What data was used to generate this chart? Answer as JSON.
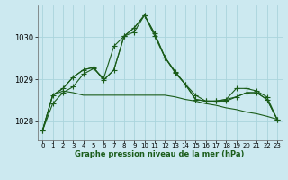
{
  "title": "Graphe pression niveau de la mer (hPa)",
  "background_color": "#cce9f0",
  "line_color": "#1a5c1a",
  "grid_color": "#aad4dc",
  "xlim": [
    -0.5,
    23.5
  ],
  "ylim": [
    1027.55,
    1030.75
  ],
  "yticks": [
    1028,
    1029,
    1030
  ],
  "xticks": [
    0,
    1,
    2,
    3,
    4,
    5,
    6,
    7,
    8,
    9,
    10,
    11,
    12,
    13,
    14,
    15,
    16,
    17,
    18,
    19,
    20,
    21,
    22,
    23
  ],
  "series": [
    [
      1027.78,
      1028.42,
      1028.68,
      1028.82,
      1029.12,
      1029.25,
      1029.02,
      1029.78,
      1030.02,
      1030.12,
      1030.52,
      1030.02,
      1029.52,
      1029.15,
      1028.88,
      1028.62,
      1028.48,
      1028.48,
      1028.48,
      1028.58,
      1028.68,
      1028.68,
      1028.52,
      1028.05
    ],
    [
      1027.78,
      1028.62,
      1028.78,
      1029.05,
      1029.22,
      1029.28,
      1028.98,
      1029.22,
      1030.02,
      1030.22,
      1030.52,
      1030.08,
      1029.52,
      1029.18,
      1028.88,
      1028.52,
      1028.48,
      1028.48,
      1028.52,
      1028.78,
      1028.78,
      1028.72,
      1028.58,
      1028.05
    ],
    [
      1027.78,
      1028.62,
      1028.78,
      1029.05,
      1029.22,
      1029.28,
      1028.98,
      1029.22,
      1030.02,
      1030.22,
      1030.52,
      1030.08,
      1029.52,
      1029.18,
      1028.88,
      1028.52,
      1028.48,
      1028.48,
      1028.52,
      1028.58,
      1028.68,
      1028.68,
      1028.52,
      1028.05
    ],
    [
      1027.78,
      1028.62,
      1028.72,
      1028.68,
      1028.62,
      1028.62,
      1028.62,
      1028.62,
      1028.62,
      1028.62,
      1028.62,
      1028.62,
      1028.62,
      1028.58,
      1028.52,
      1028.48,
      1028.42,
      1028.38,
      1028.32,
      1028.28,
      1028.22,
      1028.18,
      1028.12,
      1028.05
    ]
  ],
  "markers_series": [
    0,
    1
  ],
  "marker": "+",
  "markersize": 4,
  "linewidth": 0.8
}
